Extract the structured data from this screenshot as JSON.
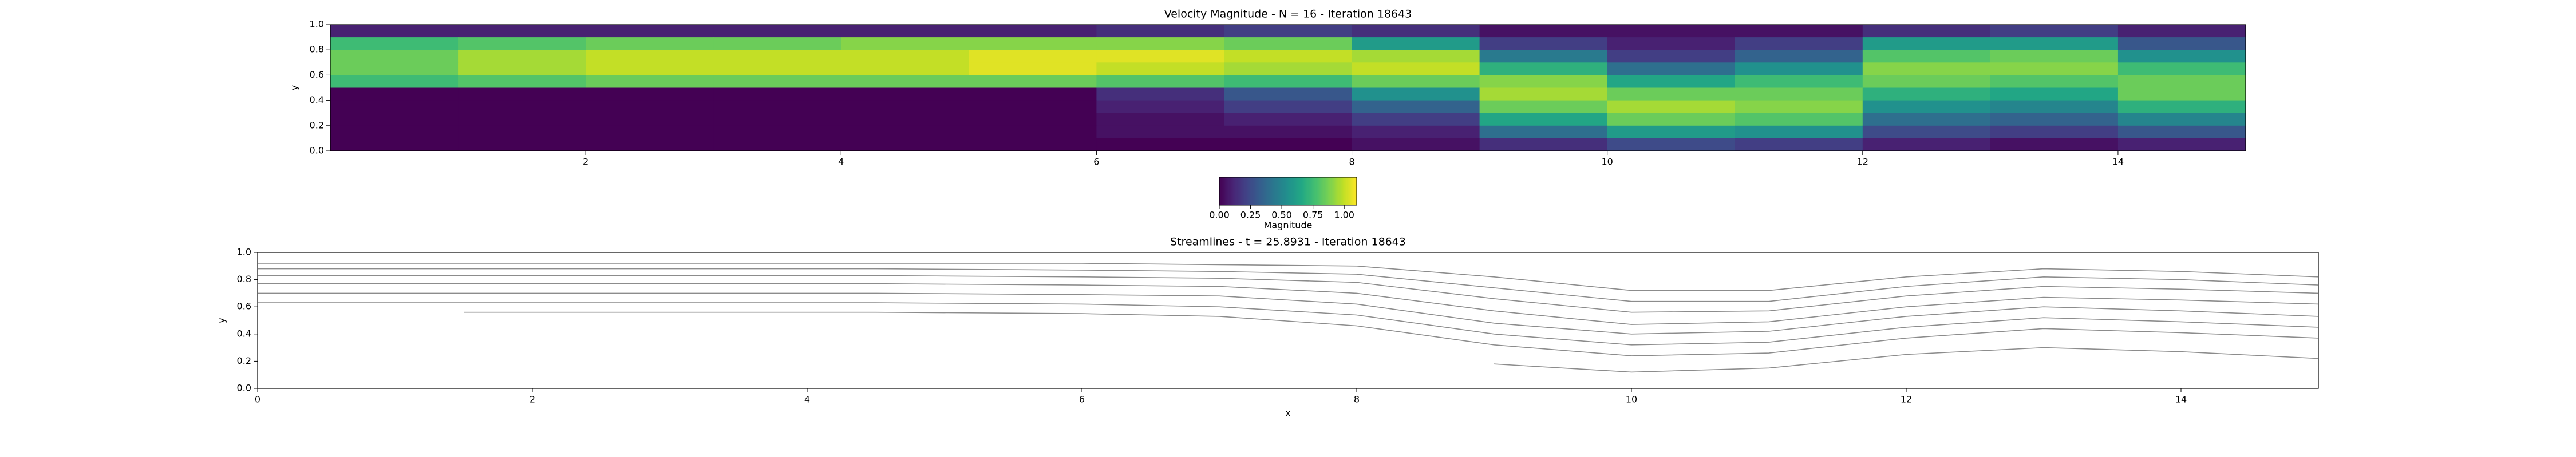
{
  "chart_data": [
    {
      "type": "heatmap",
      "title": "Velocity Magnitude - N = 16 - Iteration 18643",
      "ylabel": "y",
      "xlim": [
        0,
        15
      ],
      "ylim": [
        0,
        1
      ],
      "xticks": [
        2,
        4,
        6,
        8,
        10,
        12,
        14
      ],
      "yticks": [
        {
          "value": 0,
          "label": "0.0"
        },
        {
          "value": 0.2,
          "label": "0.2"
        },
        {
          "value": 0.4,
          "label": "0.4"
        },
        {
          "value": 0.6,
          "label": "0.6"
        },
        {
          "value": 0.8,
          "label": "0.8"
        },
        {
          "value": 1,
          "label": "1.0"
        }
      ],
      "colormap": "viridis",
      "clim": [
        0,
        1.1
      ],
      "colorbar_label": "Magnitude",
      "colorbar_ticks": [
        {
          "value": 0,
          "label": "0.00"
        },
        {
          "value": 0.25,
          "label": "0.25"
        },
        {
          "value": 0.5,
          "label": "0.50"
        },
        {
          "value": 0.75,
          "label": "0.75"
        },
        {
          "value": 1,
          "label": "1.00"
        }
      ],
      "z": [
        [
          0.1,
          0.1,
          0.1,
          0.1,
          0.1,
          0.1,
          0.15,
          0.2,
          0.15,
          0.05,
          0.05,
          0.05,
          0.15,
          0.2,
          0.1
        ],
        [
          0.75,
          0.8,
          0.85,
          0.85,
          0.9,
          0.9,
          0.9,
          0.85,
          0.6,
          0.2,
          0.1,
          0.2,
          0.6,
          0.6,
          0.3
        ],
        [
          0.85,
          0.95,
          1.0,
          1.0,
          1.0,
          1.05,
          1.05,
          1.0,
          0.95,
          0.45,
          0.2,
          0.35,
          0.8,
          0.85,
          0.55
        ],
        [
          0.85,
          0.95,
          1.0,
          1.0,
          1.0,
          1.05,
          1.0,
          0.95,
          1.0,
          0.7,
          0.4,
          0.55,
          0.9,
          0.9,
          0.75
        ],
        [
          0.75,
          0.8,
          0.85,
          0.85,
          0.85,
          0.85,
          0.8,
          0.75,
          0.85,
          0.9,
          0.65,
          0.75,
          0.85,
          0.8,
          0.85
        ],
        [
          0,
          0,
          0,
          0,
          0,
          0,
          0.15,
          0.3,
          0.55,
          0.95,
          0.85,
          0.85,
          0.7,
          0.65,
          0.85
        ],
        [
          0,
          0,
          0,
          0,
          0,
          0,
          0.1,
          0.2,
          0.35,
          0.85,
          0.95,
          0.9,
          0.55,
          0.5,
          0.7
        ],
        [
          0,
          0,
          0,
          0,
          0,
          0,
          0.05,
          0.1,
          0.2,
          0.65,
          0.85,
          0.8,
          0.4,
          0.35,
          0.5
        ],
        [
          0,
          0,
          0,
          0,
          0,
          0,
          0.05,
          0.05,
          0.1,
          0.4,
          0.6,
          0.55,
          0.25,
          0.2,
          0.3
        ],
        [
          0,
          0,
          0,
          0,
          0,
          0,
          0,
          0,
          0.05,
          0.15,
          0.25,
          0.2,
          0.1,
          0.05,
          0.1
        ]
      ]
    },
    {
      "type": "line",
      "title": "Streamlines - t = 25.8931 - Iteration 18643",
      "xlabel": "x",
      "ylabel": "y",
      "xlim": [
        0,
        15
      ],
      "ylim": [
        0,
        1
      ],
      "xticks": [
        0,
        2,
        4,
        6,
        8,
        10,
        12,
        14
      ],
      "yticks": [
        {
          "value": 0,
          "label": "0.0"
        },
        {
          "value": 0.2,
          "label": "0.2"
        },
        {
          "value": 0.4,
          "label": "0.4"
        },
        {
          "value": 0.6,
          "label": "0.6"
        },
        {
          "value": 0.8,
          "label": "0.8"
        },
        {
          "value": 1,
          "label": "1.0"
        }
      ],
      "x": [
        0,
        1.5,
        3,
        4.5,
        6,
        7,
        8,
        9,
        10,
        11,
        12,
        13,
        14,
        15
      ],
      "series": [
        {
          "color": "#8c8c8c",
          "values": [
            0.92,
            0.92,
            0.92,
            0.92,
            0.92,
            0.91,
            0.9,
            0.82,
            0.72,
            0.72,
            0.82,
            0.88,
            0.86,
            0.82
          ]
        },
        {
          "color": "#8c8c8c",
          "values": [
            0.88,
            0.88,
            0.88,
            0.88,
            0.87,
            0.86,
            0.84,
            0.74,
            0.64,
            0.64,
            0.75,
            0.82,
            0.8,
            0.76
          ]
        },
        {
          "color": "#8c8c8c",
          "values": [
            0.83,
            0.83,
            0.83,
            0.83,
            0.82,
            0.81,
            0.78,
            0.66,
            0.56,
            0.57,
            0.68,
            0.75,
            0.73,
            0.7
          ]
        },
        {
          "color": "#8c8c8c",
          "values": [
            0.77,
            0.77,
            0.77,
            0.77,
            0.76,
            0.75,
            0.7,
            0.57,
            0.47,
            0.49,
            0.6,
            0.67,
            0.65,
            0.62
          ]
        },
        {
          "color": "#8c8c8c",
          "values": [
            0.7,
            0.7,
            0.7,
            0.7,
            0.69,
            0.68,
            0.62,
            0.48,
            0.4,
            0.42,
            0.53,
            0.6,
            0.57,
            0.53
          ]
        },
        {
          "color": "#8c8c8c",
          "values": [
            0.63,
            0.63,
            0.63,
            0.63,
            0.62,
            0.6,
            0.54,
            0.4,
            0.32,
            0.34,
            0.45,
            0.52,
            0.49,
            0.45
          ]
        },
        {
          "color": "#8c8c8c",
          "values": [
            null,
            0.56,
            0.56,
            0.56,
            0.55,
            0.53,
            0.46,
            0.32,
            0.24,
            0.26,
            0.37,
            0.44,
            0.41,
            0.37
          ]
        },
        {
          "color": "#8c8c8c",
          "values": [
            null,
            null,
            null,
            null,
            null,
            null,
            null,
            0.18,
            0.12,
            0.15,
            0.25,
            0.3,
            0.27,
            0.22
          ]
        }
      ]
    }
  ]
}
